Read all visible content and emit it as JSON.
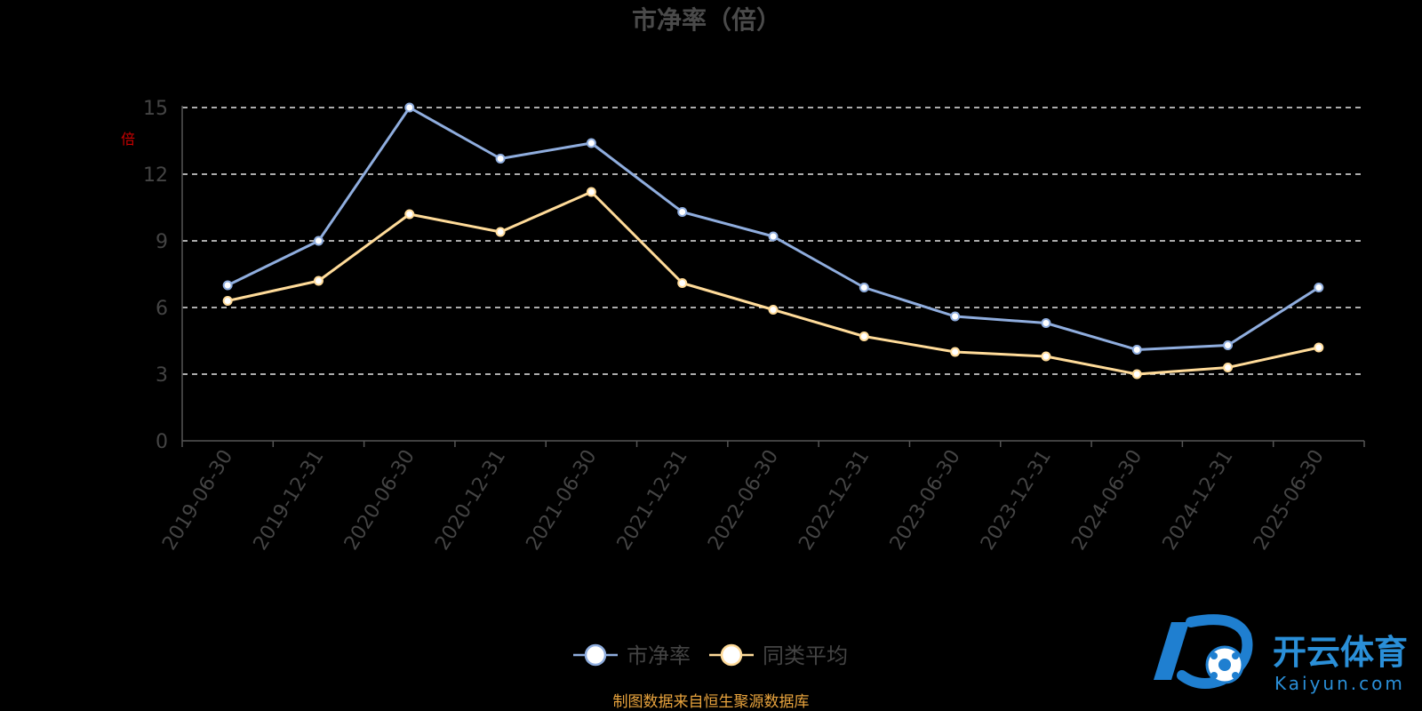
{
  "chart_data": {
    "type": "line",
    "title": "市净率（倍）",
    "ylabel": "倍",
    "xlabel": "",
    "ylim": [
      0,
      15
    ],
    "yticks": [
      0,
      3,
      6,
      9,
      12,
      15
    ],
    "grid": true,
    "legend_position": "bottom",
    "categories": [
      "2019-06-30",
      "2019-12-31",
      "2020-06-30",
      "2020-12-31",
      "2021-06-30",
      "2021-12-31",
      "2022-06-30",
      "2022-12-31",
      "2023-06-30",
      "2023-12-31",
      "2024-06-30",
      "2024-12-31",
      "2025-06-30"
    ],
    "series": [
      {
        "name": "市净率",
        "color": "#8fadde",
        "values": [
          7.0,
          9.0,
          15.0,
          12.7,
          13.4,
          10.3,
          9.2,
          6.9,
          5.6,
          5.3,
          4.1,
          4.3,
          6.9
        ]
      },
      {
        "name": "同类平均",
        "color": "#ffdb99",
        "values": [
          6.3,
          7.2,
          10.2,
          9.4,
          11.2,
          7.1,
          5.9,
          4.7,
          4.0,
          3.8,
          3.0,
          3.3,
          4.2
        ]
      }
    ]
  },
  "source_note": "制图数据来自恒生聚源数据库",
  "source_color": "#e8a33d",
  "watermark": {
    "brand_cn": "开云体育",
    "brand_en": "Kaiyun.com",
    "color": "#2a8fd8"
  }
}
